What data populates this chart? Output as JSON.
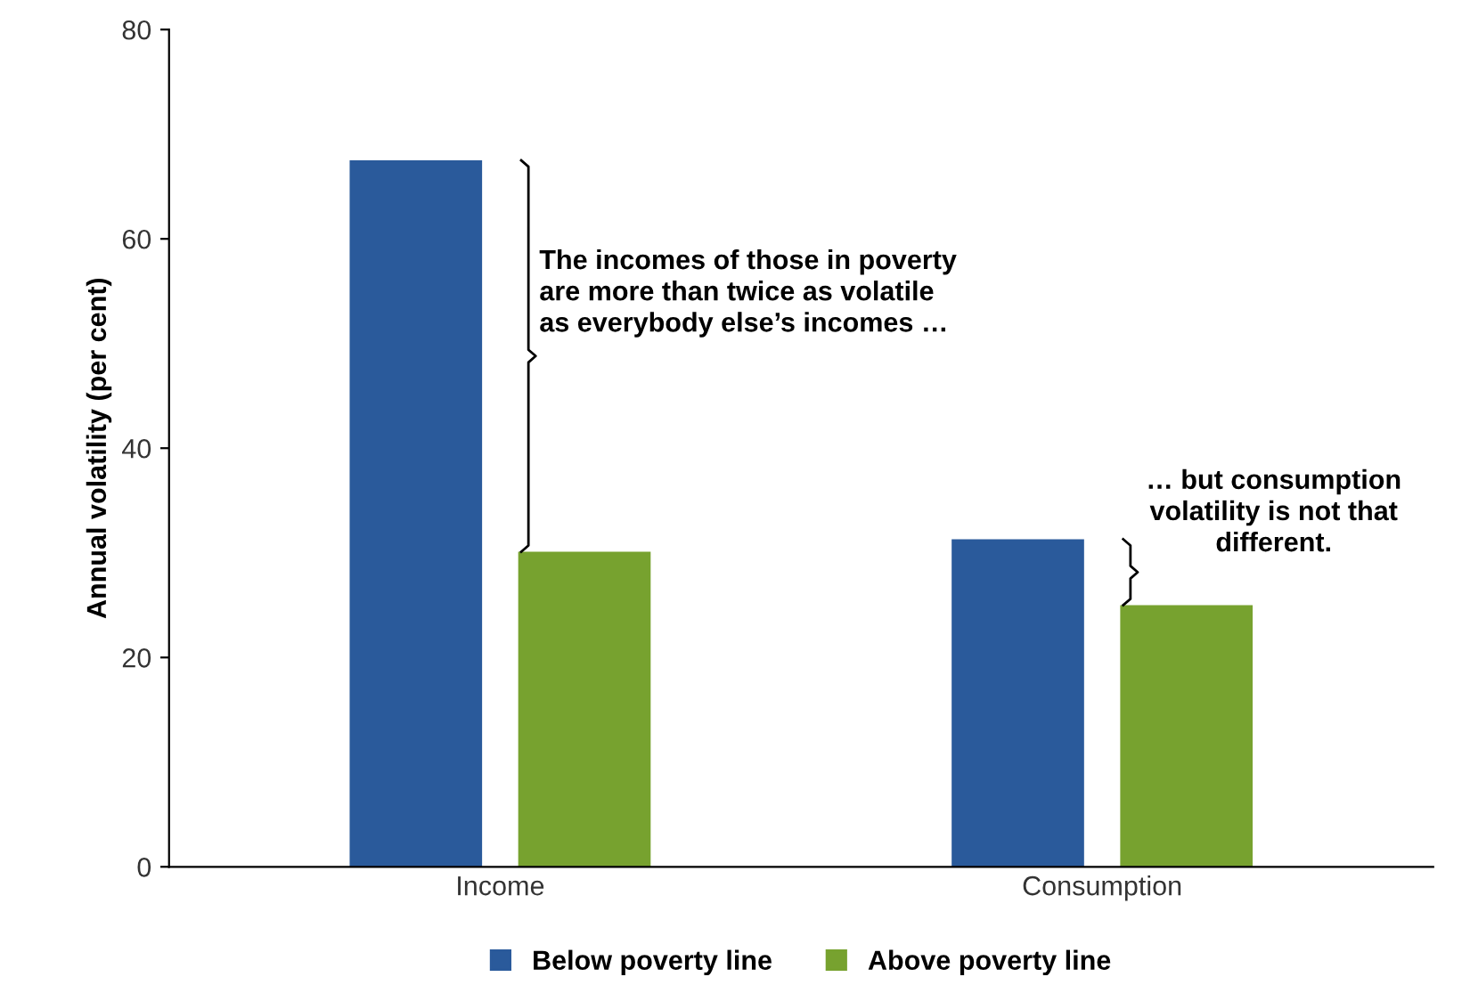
{
  "chart_data": {
    "type": "bar",
    "ylabel": "Annual volatility (per cent)",
    "categories": [
      "Income",
      "Consumption"
    ],
    "series": [
      {
        "name": "Below poverty line",
        "color": "#2a5a9b",
        "values": [
          67.5,
          31.3
        ]
      },
      {
        "name": "Above poverty line",
        "color": "#77a22f",
        "values": [
          30.1,
          25.0
        ]
      }
    ],
    "ylim": [
      0,
      80
    ],
    "yticks": [
      0,
      20,
      40,
      60,
      80
    ],
    "grid": false,
    "legend": "bottom",
    "annotations": [
      "The incomes of those in poverty\nare more than twice as volatile\nas everybody else’s incomes …",
      "… but consumption\nvolatility is not that\ndifferent."
    ]
  }
}
